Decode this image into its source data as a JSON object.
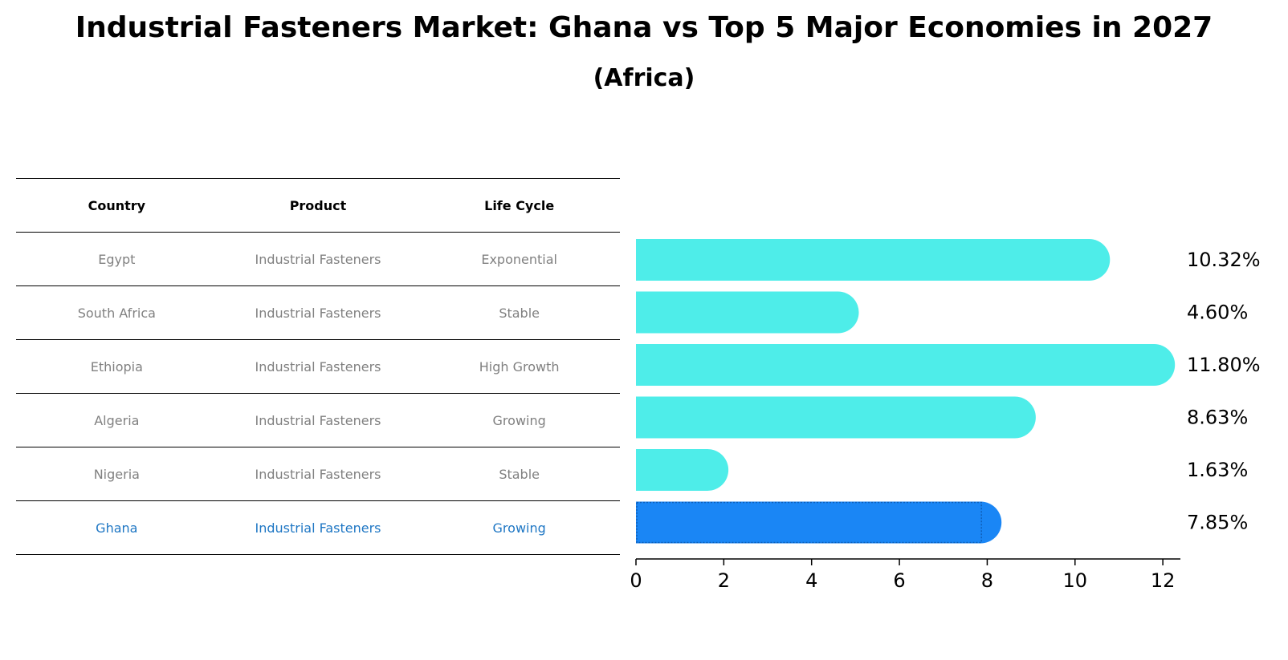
{
  "title": "Industrial Fasteners Market: Ghana vs Top 5 Major Economies in 2027",
  "subtitle": "(Africa)",
  "table": {
    "headers": [
      "Country",
      "Product",
      "Life Cycle"
    ],
    "rows": [
      {
        "country": "Egypt",
        "product": "Industrial Fasteners",
        "life_cycle": "Exponential"
      },
      {
        "country": "South Africa",
        "product": "Industrial Fasteners",
        "life_cycle": "Stable"
      },
      {
        "country": "Ethiopia",
        "product": "Industrial Fasteners",
        "life_cycle": "High Growth"
      },
      {
        "country": "Algeria",
        "product": "Industrial Fasteners",
        "life_cycle": "Growing"
      },
      {
        "country": "Nigeria",
        "product": "Industrial Fasteners",
        "life_cycle": "Stable"
      },
      {
        "country": "Ghana",
        "product": "Industrial Fasteners",
        "life_cycle": "Growing"
      }
    ]
  },
  "chart_data": {
    "type": "bar",
    "orientation": "horizontal",
    "categories": [
      "Egypt",
      "South Africa",
      "Ethiopia",
      "Algeria",
      "Nigeria",
      "Ghana"
    ],
    "values": [
      10.32,
      4.6,
      11.8,
      8.63,
      1.63,
      7.85
    ],
    "value_labels": [
      "10.32%",
      "4.60%",
      "11.80%",
      "8.63%",
      "1.63%",
      "7.85%"
    ],
    "highlight": "Ghana",
    "xlim": [
      0,
      12.4
    ],
    "xticks": [
      0,
      2,
      4,
      6,
      8,
      10,
      12
    ],
    "colors": {
      "default": "#4eede9",
      "highlight": "#1a86f5"
    }
  }
}
